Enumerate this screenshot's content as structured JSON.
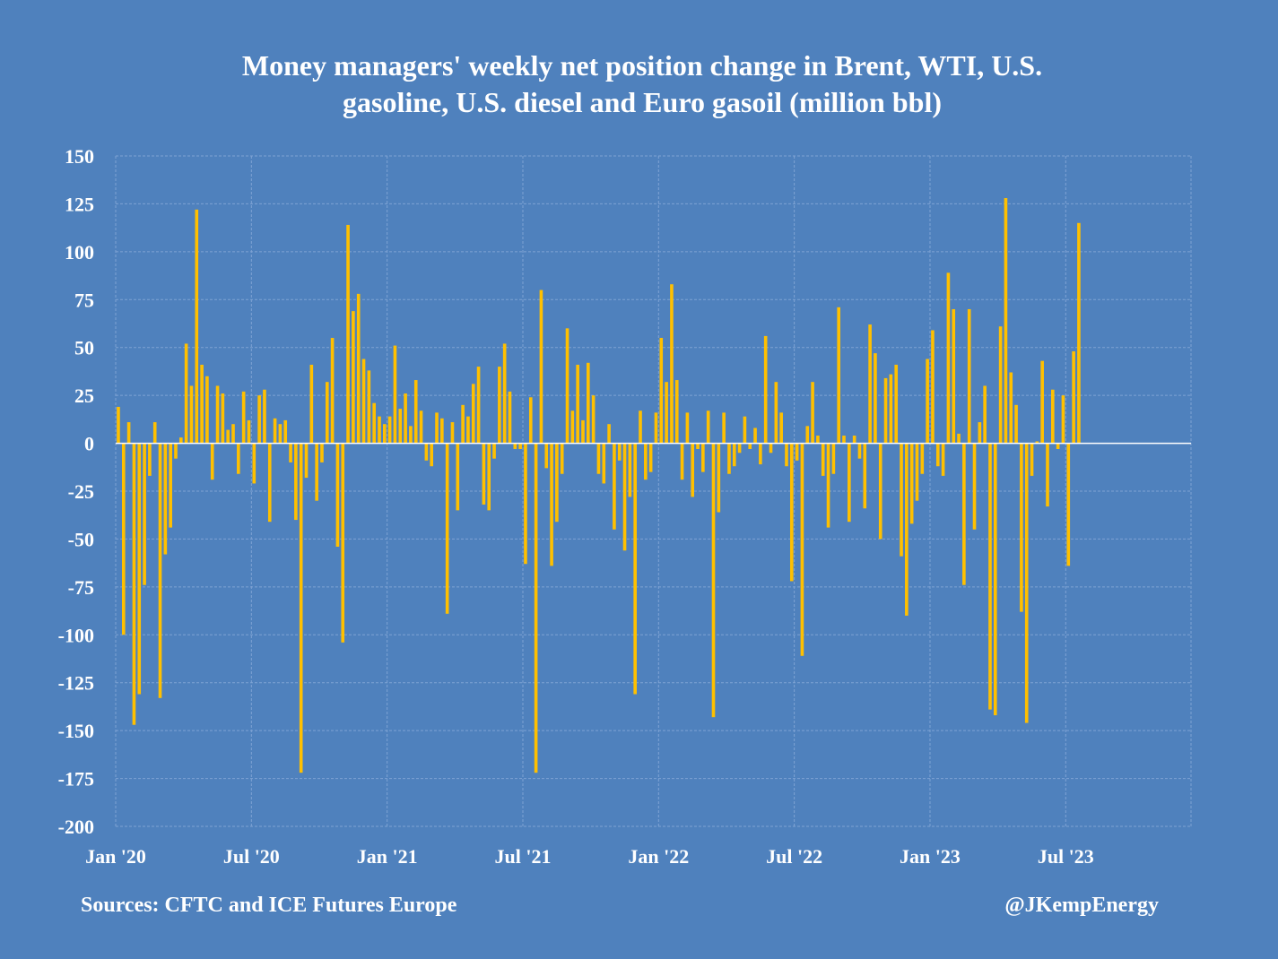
{
  "chart_data": {
    "type": "bar",
    "title_lines": [
      "Money managers' weekly net position change in Brent, WTI, U.S.",
      "gasoline, U.S. diesel and Euro gasoil (million bbl)"
    ],
    "ylim": [
      -200,
      150
    ],
    "y_ticks": [
      150,
      125,
      100,
      75,
      50,
      25,
      0,
      -25,
      -50,
      -75,
      -100,
      -125,
      -150,
      -175,
      -200
    ],
    "x_range_weeks": [
      0,
      156
    ],
    "x_ticks": [
      {
        "label": "Jan '20",
        "week": 0
      },
      {
        "label": "Jul '20",
        "week": 26
      },
      {
        "label": "Jan '21",
        "week": 52
      },
      {
        "label": "Jul '21",
        "week": 78
      },
      {
        "label": "Jan '22",
        "week": 104
      },
      {
        "label": "Jul '22",
        "week": 130
      },
      {
        "label": "Jan '23",
        "week": 156
      },
      {
        "label": "Jul '23",
        "week": 182
      }
    ],
    "x_max_week": 206,
    "grid": true,
    "series": [
      {
        "name": "Weekly net position change",
        "color": "#ffc000",
        "values": [
          19,
          -100,
          11,
          -147,
          -131,
          -74,
          -17,
          11,
          -133,
          -58,
          -44,
          -8,
          3,
          52,
          30,
          122,
          41,
          35,
          -19,
          30,
          26,
          7,
          10,
          -16,
          27,
          12,
          -21,
          25,
          28,
          -41,
          13,
          10,
          12,
          -10,
          -40,
          -172,
          -18,
          41,
          -30,
          -10,
          32,
          55,
          -54,
          -104,
          114,
          69,
          78,
          44,
          38,
          21,
          14,
          10,
          14,
          51,
          18,
          26,
          9,
          33,
          17,
          -9,
          -12,
          16,
          13,
          -89,
          11,
          -35,
          20,
          14,
          31,
          40,
          -32,
          -35,
          -8,
          40,
          52,
          27,
          -3,
          -3,
          -63,
          24,
          -172,
          80,
          -13,
          -64,
          -41,
          -16,
          60,
          17,
          41,
          12,
          42,
          25,
          -16,
          -21,
          10,
          -45,
          -9,
          -56,
          -28,
          -131,
          17,
          -19,
          -15,
          16,
          55,
          32,
          83,
          33,
          -19,
          16,
          -28,
          -3,
          -15,
          17,
          -143,
          -36,
          16,
          -16,
          -12,
          -5,
          14,
          -3,
          8,
          -11,
          56,
          -5,
          32,
          16,
          -12,
          -72,
          -9,
          -111,
          9,
          32,
          4,
          -17,
          -44,
          -16,
          71,
          4,
          -41,
          4,
          -8,
          -34,
          62,
          47,
          -50,
          34,
          36,
          41,
          -59,
          -90,
          -42,
          -30,
          -16,
          44,
          59,
          -12,
          -17,
          89,
          70,
          5,
          -74,
          70,
          -45,
          11,
          30,
          -139,
          -142,
          61,
          128,
          37,
          20,
          -88,
          -146,
          -17,
          1,
          43,
          -33,
          28,
          -3,
          25,
          -64,
          48,
          115
        ]
      }
    ],
    "source": "Sources: CFTC and ICE Futures Europe",
    "credit": "@JKempEnergy"
  },
  "style": {
    "background": "#4f81bd",
    "bar_color": "#ffc000",
    "grid_color": "#7fa3d4",
    "axis_color": "#ffffff",
    "text_color": "#ffffff"
  }
}
